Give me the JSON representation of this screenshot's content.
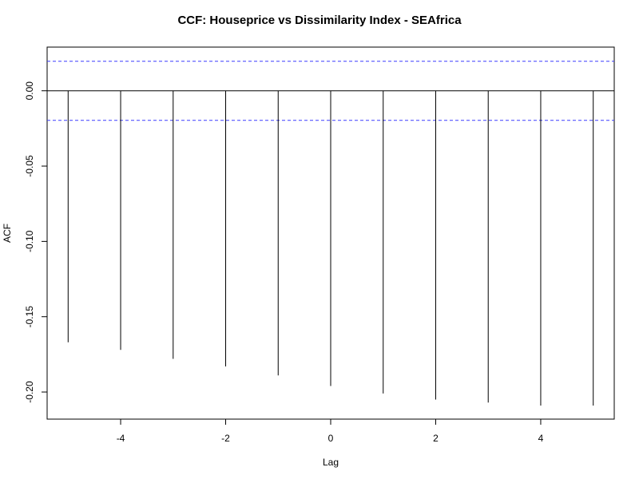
{
  "chart_data": {
    "type": "bar",
    "title": "CCF: Houseprice vs Dissimilarity Index - SEAfrica",
    "xlabel": "Lag",
    "ylabel": "ACF",
    "x": [
      -5,
      -4,
      -3,
      -2,
      -1,
      0,
      1,
      2,
      3,
      4,
      5
    ],
    "values": [
      -0.167,
      -0.172,
      -0.178,
      -0.183,
      -0.189,
      -0.196,
      -0.201,
      -0.205,
      -0.207,
      -0.209,
      -0.209
    ],
    "xlim": [
      -5.4,
      5.4
    ],
    "ylim": [
      -0.218,
      0.029
    ],
    "x_ticks": [
      -4,
      -2,
      0,
      2,
      4
    ],
    "x_tick_labels": [
      "-4",
      "-2",
      "0",
      "2",
      "4"
    ],
    "y_ticks": [
      0.0,
      -0.05,
      -0.1,
      -0.15,
      -0.2
    ],
    "y_tick_labels": [
      "0.00",
      "-0.05",
      "-0.10",
      "-0.15",
      "-0.20"
    ],
    "confidence_bound": 0.0196,
    "zero_line": true,
    "grid": false,
    "colors": {
      "bars": "#000000",
      "confidence": "#3b3bff",
      "axes": "#000000"
    }
  }
}
